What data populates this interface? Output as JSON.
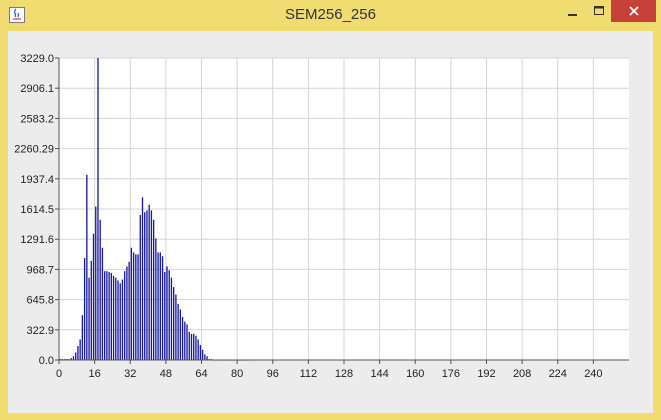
{
  "window": {
    "title": "SEM256_256",
    "icon": "java-icon",
    "controls": [
      "minimize-icon",
      "maximize-icon",
      "close-icon"
    ],
    "colors": {
      "frame": "#f0dc70",
      "close": "#c7413a",
      "bar": "#1a1aa0",
      "grid": "#d4d4d4"
    }
  },
  "chart_data": {
    "type": "bar",
    "title": "",
    "xlabel": "",
    "ylabel": "",
    "xlim": [
      0,
      256
    ],
    "ylim": [
      0,
      3229.0
    ],
    "grid": true,
    "legend": "none",
    "x_ticks": [
      "0",
      "16",
      "32",
      "48",
      "64",
      "80",
      "96",
      "112",
      "128",
      "144",
      "160",
      "176",
      "192",
      "208",
      "224",
      "240"
    ],
    "y_ticks": [
      "0.0",
      "322.9",
      "645.8",
      "968.7",
      "1291.6",
      "1614.5",
      "1937.4",
      "2260.29",
      "2583.2",
      "2906.1",
      "3229.0"
    ],
    "series": [
      {
        "x": [
          0,
          1,
          2,
          3,
          4,
          5,
          6,
          7,
          8,
          9,
          10,
          11,
          12,
          13,
          14,
          15,
          16,
          17,
          18,
          19,
          20,
          21,
          22,
          23,
          24,
          25,
          26,
          27,
          28,
          29,
          30,
          31,
          32,
          33,
          34,
          35,
          36,
          37,
          38,
          39,
          40,
          41,
          42,
          43,
          44,
          45,
          46,
          47,
          48,
          49,
          50,
          51,
          52,
          53,
          54,
          55,
          56,
          57,
          58,
          59,
          60,
          61,
          62,
          63,
          64,
          65,
          66,
          67,
          68,
          69,
          70,
          71,
          72,
          73,
          74,
          75,
          76,
          77,
          78,
          79,
          80,
          81,
          82,
          83,
          84,
          85
        ],
        "values": [
          10,
          10,
          10,
          10,
          10,
          20,
          40,
          80,
          150,
          220,
          480,
          1090,
          1980,
          880,
          1060,
          1350,
          1640,
          3229,
          1500,
          1200,
          950,
          950,
          940,
          930,
          900,
          880,
          850,
          820,
          860,
          950,
          1000,
          1050,
          1200,
          1150,
          1130,
          1130,
          1550,
          1740,
          1580,
          1600,
          1660,
          1600,
          1500,
          1300,
          1150,
          1150,
          1110,
          940,
          1000,
          960,
          880,
          780,
          700,
          600,
          540,
          460,
          410,
          380,
          300,
          280,
          280,
          260,
          220,
          160,
          110,
          60,
          40,
          10,
          10,
          0,
          0,
          0,
          0,
          0,
          0,
          0,
          0,
          0,
          0,
          0,
          0,
          0,
          0,
          0,
          0,
          0
        ]
      }
    ]
  }
}
